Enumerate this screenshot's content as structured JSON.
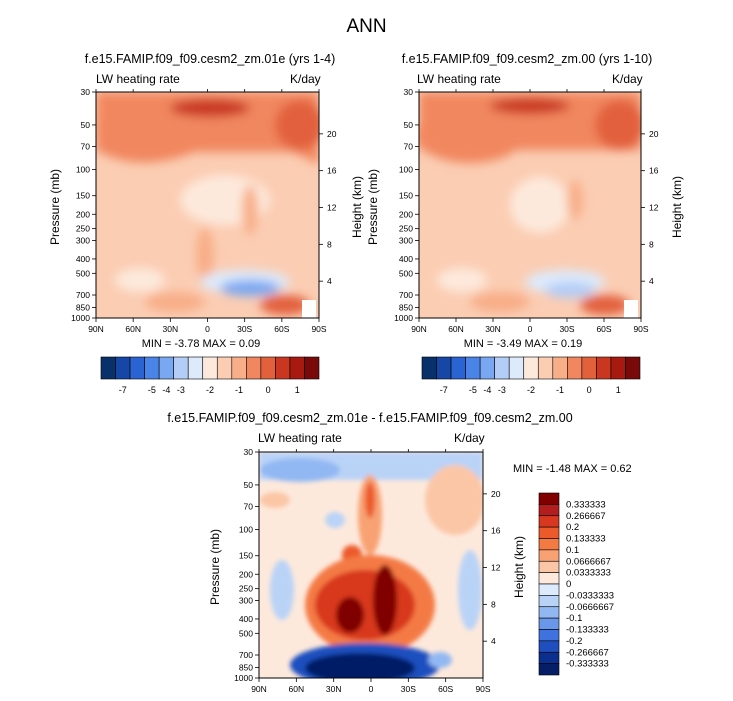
{
  "main_title": "ANN",
  "chart_data": [
    {
      "type": "heatmap",
      "title": "f.e15.FAMIP.f09_f09.cesm2_zm.01e (yrs 1-4)",
      "left_subtitle": "LW heating rate",
      "right_subtitle": "K/day",
      "xlabel": "",
      "ylabel": "Pressure (mb)",
      "ylabel_right": "Height (km)",
      "x_ticks": [
        "90N",
        "60N",
        "30N",
        "0",
        "30S",
        "60S",
        "90S"
      ],
      "y_ticks": [
        "30",
        "50",
        "70",
        "100",
        "150",
        "200",
        "250",
        "300",
        "400",
        "500",
        "700",
        "850",
        "1000"
      ],
      "y_right_ticks": [
        "20",
        "16",
        "12",
        "8",
        "4"
      ],
      "min_max_text": "MIN = -3.78  MAX = 0.09",
      "colorbar_labels": [
        "-7",
        "-5",
        "-4",
        "-3",
        "-2",
        "-1",
        "0",
        "1"
      ],
      "ylim": [
        1000,
        30
      ]
    },
    {
      "type": "heatmap",
      "title": "f.e15.FAMIP.f09_f09.cesm2_zm.00 (yrs 1-10)",
      "left_subtitle": "LW heating rate",
      "right_subtitle": "K/day",
      "xlabel": "",
      "ylabel": "Pressure (mb)",
      "ylabel_right": "Height (km)",
      "x_ticks": [
        "90N",
        "60N",
        "30N",
        "0",
        "30S",
        "60S",
        "90S"
      ],
      "y_ticks": [
        "30",
        "50",
        "70",
        "100",
        "150",
        "200",
        "250",
        "300",
        "400",
        "500",
        "700",
        "850",
        "1000"
      ],
      "y_right_ticks": [
        "20",
        "16",
        "12",
        "8",
        "4"
      ],
      "min_max_text": "MIN = -3.49  MAX = 0.19",
      "colorbar_labels": [
        "-7",
        "-5",
        "-4",
        "-3",
        "-2",
        "-1",
        "0",
        "1"
      ],
      "ylim": [
        1000,
        30
      ]
    },
    {
      "type": "heatmap",
      "title": "f.e15.FAMIP.f09_f09.cesm2_zm.01e - f.e15.FAMIP.f09_f09.cesm2_zm.00",
      "left_subtitle": "LW heating rate",
      "right_subtitle": "K/day",
      "xlabel": "",
      "ylabel": "Pressure (mb)",
      "ylabel_right": "Height (km)",
      "x_ticks": [
        "90N",
        "60N",
        "30N",
        "0",
        "30S",
        "60S",
        "90S"
      ],
      "y_ticks": [
        "30",
        "50",
        "70",
        "100",
        "150",
        "200",
        "250",
        "300",
        "400",
        "500",
        "700",
        "850",
        "1000"
      ],
      "y_right_ticks": [
        "20",
        "16",
        "12",
        "8",
        "4"
      ],
      "min_max_text": "MIN = -1.48  MAX = 0.62",
      "colorbar_labels": [
        "0.333333",
        "0.266667",
        "0.2",
        "0.133333",
        "0.1",
        "0.0666667",
        "0.0333333",
        "0",
        "-0.0333333",
        "-0.0666667",
        "-0.1",
        "-0.133333",
        "-0.2",
        "-0.266667",
        "-0.333333"
      ],
      "ylim": [
        1000,
        30
      ]
    }
  ],
  "colors": {
    "abs_scale": [
      "#08306b",
      "#1747a6",
      "#2a63d2",
      "#4a84e6",
      "#7aa7f2",
      "#b3cdf7",
      "#ddeafc",
      "#fde9dc",
      "#fbcdb3",
      "#f8ae88",
      "#f1875e",
      "#e2603c",
      "#c93720",
      "#a81a10",
      "#7a0a0a"
    ],
    "diff_scale": [
      "#800000",
      "#b41d1d",
      "#d8381f",
      "#ec5a2c",
      "#f47a44",
      "#f8a273",
      "#fbc6a6",
      "#fde9dc",
      "#ddeafc",
      "#b9d3f7",
      "#92b8f3",
      "#6998ea",
      "#3f72de",
      "#1f4fbf",
      "#0b2f8e",
      "#061e66"
    ]
  }
}
